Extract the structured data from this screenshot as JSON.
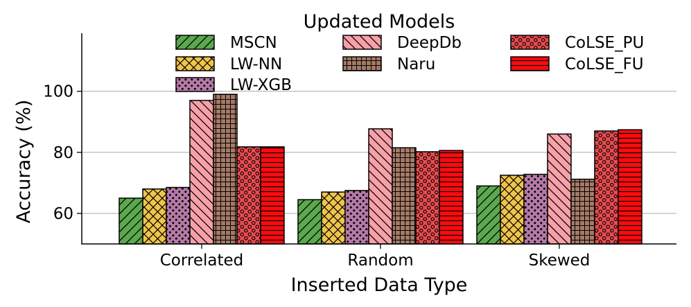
{
  "chart_data": {
    "type": "bar",
    "xlabel": "Inserted Data Type",
    "ylabel": "Accuracy (%)",
    "ylim": [
      50,
      119
    ],
    "yticks": [
      60,
      80,
      100
    ],
    "grid": "horizontal",
    "legend_title": "Updated Models",
    "legend_placement": "top",
    "categories": [
      "Correlated",
      "Random",
      "Skewed"
    ],
    "series": [
      {
        "name": "MSCN",
        "values": [
          65.0,
          64.5,
          69.0
        ],
        "color": "#5ba84e",
        "pattern": "diag-fwd"
      },
      {
        "name": "LW-NN",
        "values": [
          68.0,
          67.0,
          72.5
        ],
        "color": "#f0c44c",
        "pattern": "crosshatch"
      },
      {
        "name": "LW-XGB",
        "values": [
          68.5,
          67.5,
          72.8
        ],
        "color": "#b57aa6",
        "pattern": "dots-small"
      },
      {
        "name": "DeepDb",
        "values": [
          97.0,
          87.7,
          86.0
        ],
        "color": "#f7a0a8",
        "pattern": "diag-back"
      },
      {
        "name": "Naru",
        "values": [
          99.0,
          81.5,
          71.2
        ],
        "color": "#a57a66",
        "pattern": "grid"
      },
      {
        "name": "CoLSE_PU",
        "values": [
          81.8,
          80.2,
          87.0
        ],
        "color": "#e84c50",
        "pattern": "dots-large"
      },
      {
        "name": "CoLSE_FU",
        "values": [
          81.8,
          80.6,
          87.4
        ],
        "color": "#fb0a0e",
        "pattern": "horizontal"
      }
    ]
  }
}
